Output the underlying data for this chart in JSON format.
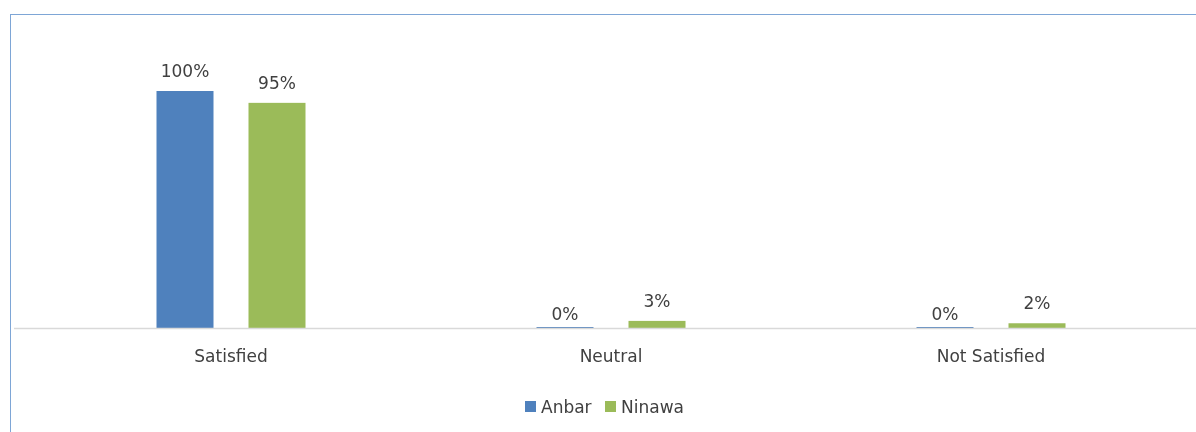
{
  "chart_data": {
    "type": "bar",
    "categories": [
      "Satisfied",
      "Neutral",
      "Not Satisfied"
    ],
    "series": [
      {
        "name": "Anbar",
        "color": "#4f81bd",
        "values": [
          100,
          0,
          0
        ],
        "value_labels": [
          "100%",
          "0%",
          "0%"
        ]
      },
      {
        "name": "Ninawa",
        "color": "#9bbb59",
        "values": [
          95,
          3,
          2
        ],
        "value_labels": [
          "95%",
          "3%",
          "2%"
        ]
      }
    ],
    "legend": "bottom"
  }
}
